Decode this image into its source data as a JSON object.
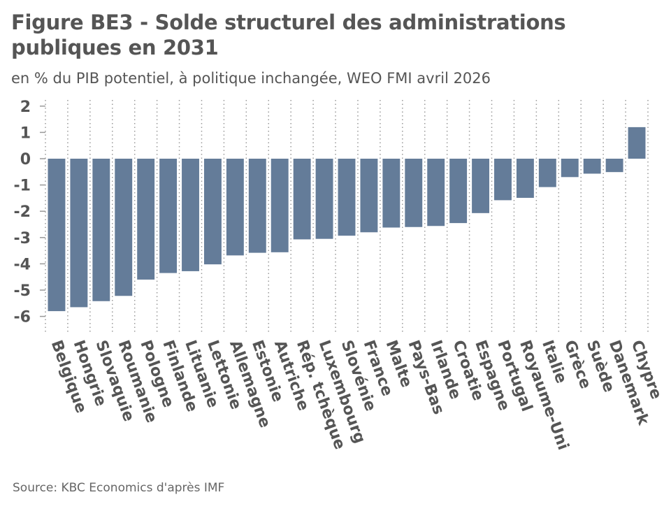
{
  "title": "Figure BE3 - Solde structurel des administrations publiques en 2031",
  "subtitle": "en % du PIB potentiel, à politique inchangée, WEO FMI avril 2026",
  "source": "Source: KBC Economics d'après IMF",
  "colors": {
    "bar": "#647c99",
    "grid": "#999999",
    "text": "#555555"
  },
  "chart_data": {
    "type": "bar",
    "title": "Figure BE3 - Solde structurel des administrations publiques en 2031",
    "subtitle": "en % du PIB potentiel, à politique inchangée, WEO FMI avril 2026",
    "categories": [
      "Belgique",
      "Hongrie",
      "Slovaquie",
      "Roumanie",
      "Pologne",
      "Finlande",
      "Lituanie",
      "Lettonie",
      "Allemagne",
      "Estonie",
      "Autriche",
      "Rép. tchèque",
      "Luxembourg",
      "Slovénie",
      "France",
      "Malte",
      "Pays-Bas",
      "Irlande",
      "Croatie",
      "Espagne",
      "Portugal",
      "Royaume-Uni",
      "Italie",
      "Grèce",
      "Suède",
      "Danemark",
      "Chypre"
    ],
    "values": [
      -5.8,
      -5.65,
      -5.42,
      -5.22,
      -4.6,
      -4.35,
      -4.28,
      -4.02,
      -3.68,
      -3.58,
      -3.56,
      -3.07,
      -3.05,
      -2.93,
      -2.8,
      -2.62,
      -2.6,
      -2.56,
      -2.45,
      -2.07,
      -1.58,
      -1.49,
      -1.08,
      -0.7,
      -0.57,
      -0.51,
      1.2
    ],
    "yticks": [
      2,
      1,
      0,
      -1,
      -2,
      -3,
      -4,
      -5,
      -6
    ],
    "ylim": [
      -6.6,
      2.2
    ],
    "grid": "vertical dotted",
    "legend": "none"
  }
}
